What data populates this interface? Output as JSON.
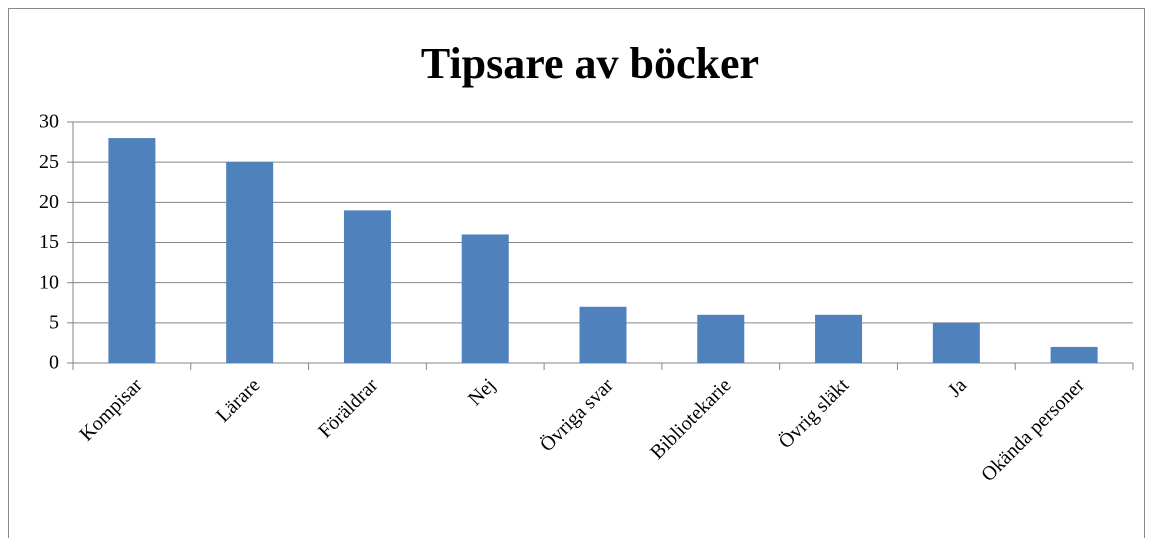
{
  "chart_data": {
    "type": "bar",
    "title": "Tipsare av böcker",
    "categories": [
      "Kompisar",
      "Lärare",
      "Föräldrar",
      "Nej",
      "Övriga svar",
      "Bibliotekarie",
      "Övrig släkt",
      "Ja",
      "Okända personer"
    ],
    "values": [
      28,
      25,
      19,
      16,
      7,
      6,
      6,
      5,
      2
    ],
    "color": "#4f81bd",
    "ylim": [
      0,
      30
    ],
    "yticks": [
      0,
      5,
      10,
      15,
      20,
      25,
      30
    ],
    "grid": true
  }
}
